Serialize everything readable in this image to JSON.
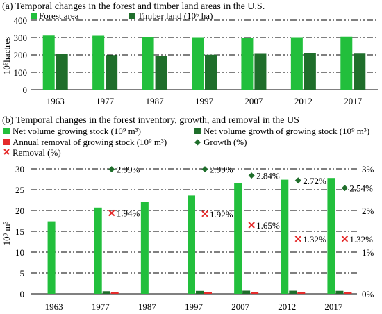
{
  "colors": {
    "light_green": "#22bf3c",
    "dark_green": "#1f6e2b",
    "red": "#e52b2b",
    "diamond_green": "#1f6e2b",
    "cross_red": "#e52b2b"
  },
  "chart_data": [
    {
      "type": "bar",
      "title": "(a) Temporal changes in the forest and timber land areas in the U.S.",
      "ylabel": "10⁶hactres",
      "categories": [
        "1963",
        "1977",
        "1987",
        "1997",
        "2007",
        "2012",
        "2017"
      ],
      "ylim": [
        0,
        400
      ],
      "yticks": [
        "0",
        "100",
        "200",
        "300",
        "400"
      ],
      "series": [
        {
          "name": "Forest area",
          "values": [
            311,
            310,
            304,
            302,
            298,
            302,
            305
          ]
        },
        {
          "name": "Timber land (10⁶ ha)",
          "values": [
            204,
            199,
            196,
            201,
            206,
            208,
            207
          ]
        }
      ],
      "grid": true,
      "legend": "top"
    },
    {
      "type": "bar",
      "title": "(b) Temporal changes in the forest inventory, growth, and removal in the US",
      "ylabel": "10⁹ m³",
      "categories": [
        "1963",
        "1977",
        "1987",
        "1997",
        "2007",
        "2012",
        "2017"
      ],
      "ylim": [
        0,
        30
      ],
      "yticks": [
        "0",
        "5",
        "10",
        "15",
        "20",
        "25",
        "30"
      ],
      "y2lim": [
        0,
        3
      ],
      "y2ticks": [
        "0%",
        "1%",
        "2%",
        "3%"
      ],
      "series": [
        {
          "name": "Net volume growing stock (10⁹ m³)",
          "values": [
            17.4,
            20.7,
            22.0,
            23.6,
            26.6,
            27.4,
            27.8
          ]
        },
        {
          "name": "Net volume growth of growing stock (10⁹ m³)",
          "values": [
            null,
            0.62,
            null,
            0.7,
            0.75,
            0.74,
            0.71
          ]
        },
        {
          "name": "Annual removal of growing stock (10⁹ m³)",
          "values": [
            null,
            0.4,
            null,
            0.45,
            0.44,
            0.36,
            0.37
          ]
        },
        {
          "name": "Growth (%)",
          "type": "scatter",
          "axis": "right",
          "values": [
            null,
            2.99,
            null,
            2.99,
            2.84,
            2.72,
            2.54
          ],
          "labels": [
            "",
            "2.99%",
            "",
            "2.99%",
            "2.84%",
            "2.72%",
            "2.54%"
          ]
        },
        {
          "name": "Removal (%)",
          "type": "scatter",
          "axis": "right",
          "values": [
            null,
            1.94,
            null,
            1.92,
            1.65,
            1.32,
            1.32
          ],
          "labels": [
            "",
            "1.94%",
            "",
            "1.92%",
            "1.65%",
            "1.32%",
            "1.32%"
          ]
        }
      ],
      "grid": true,
      "legend": "top"
    }
  ]
}
